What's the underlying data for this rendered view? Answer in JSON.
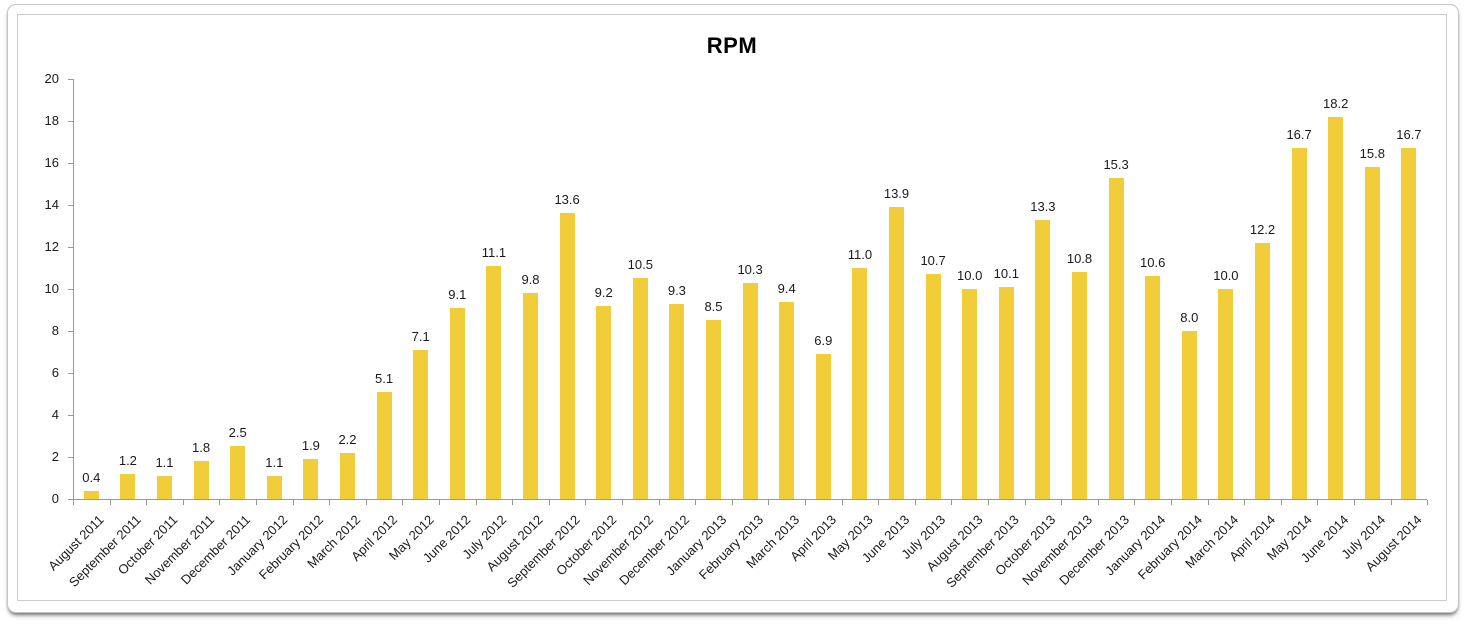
{
  "chart_data": {
    "type": "bar",
    "title": "RPM",
    "categories": [
      "August 2011",
      "September 2011",
      "October 2011",
      "November 2011",
      "December 2011",
      "January 2012",
      "February 2012",
      "March 2012",
      "April 2012",
      "May 2012",
      "June 2012",
      "July 2012",
      "August 2012",
      "September 2012",
      "October 2012",
      "November 2012",
      "December 2012",
      "January 2013",
      "February 2013",
      "March 2013",
      "April 2013",
      "May 2013",
      "June 2013",
      "July 2013",
      "August 2013",
      "September 2013",
      "October 2013",
      "November 2013",
      "December 2013",
      "January 2014",
      "February 2014",
      "March 2014",
      "April 2014",
      "May 2014",
      "June 2014",
      "July 2014",
      "August 2014"
    ],
    "values": [
      0.4,
      1.2,
      1.1,
      1.8,
      2.5,
      1.1,
      1.9,
      2.2,
      5.1,
      7.1,
      9.1,
      11.1,
      9.8,
      13.6,
      9.2,
      10.5,
      9.3,
      8.5,
      10.3,
      9.4,
      6.9,
      11.0,
      13.9,
      10.7,
      10.0,
      10.1,
      13.3,
      10.8,
      15.3,
      10.6,
      8.0,
      10.0,
      12.2,
      16.7,
      18.2,
      15.8,
      16.7
    ],
    "value_labels": [
      "0.4",
      "1.2",
      "1.1",
      "1.8",
      "2.5",
      "1.1",
      "1.9",
      "2.2",
      "5.1",
      "7.1",
      "9.1",
      "11.1",
      "9.8",
      "13.6",
      "9.2",
      "10.5",
      "9.3",
      "8.5",
      "10.3",
      "9.4",
      "6.9",
      "11.0",
      "13.9",
      "10.7",
      "10.0",
      "10.1",
      "13.3",
      "10.8",
      "15.3",
      "10.6",
      "8.0",
      "10.0",
      "12.2",
      "16.7",
      "18.2",
      "15.8",
      "16.7"
    ],
    "xlabel": "",
    "ylabel": "",
    "ylim": [
      0,
      20
    ],
    "yticks": [
      0,
      2,
      4,
      6,
      8,
      10,
      12,
      14,
      16,
      18,
      20
    ],
    "grid": false,
    "legend": "none",
    "value_label_position": "above-bar",
    "x_label_rotation_deg": -45,
    "bar_color": "#F2CD3A",
    "axis_color": "#999999",
    "text_color": "#1A1A1A",
    "title_color": "#000000"
  }
}
